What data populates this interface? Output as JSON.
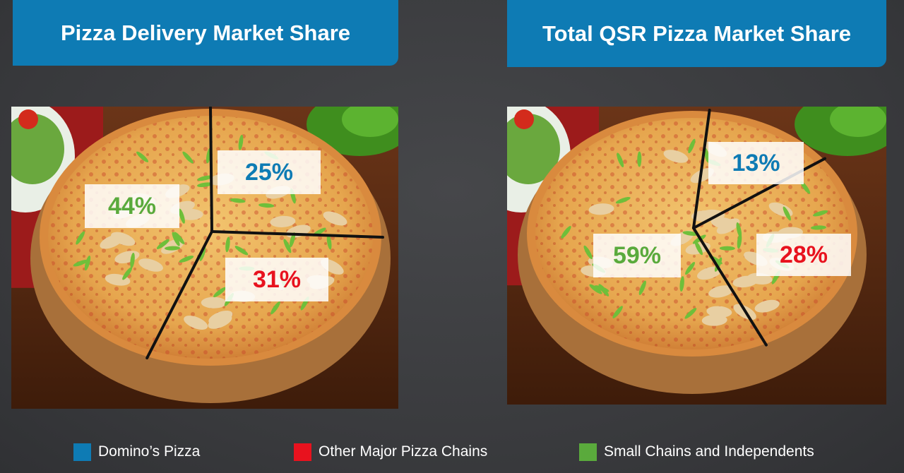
{
  "colors": {
    "dominos": "#0e7bb4",
    "other_chains": "#e8121e",
    "small_chains": "#5aaa3c",
    "title_bar": "#0e7bb4",
    "background": "#3e3f42"
  },
  "chart_data": [
    {
      "type": "pie",
      "title": "Pizza Delivery Market Share",
      "categories": [
        "Domino's Pizza",
        "Other Major Pizza Chains",
        "Small Chains and Independents"
      ],
      "values": [
        25,
        31,
        44
      ],
      "labels": [
        "25%",
        "31%",
        "44%"
      ]
    },
    {
      "type": "pie",
      "title": "Total QSR Pizza Market Share",
      "categories": [
        "Domino's Pizza",
        "Other Major Pizza Chains",
        "Small Chains and Independents"
      ],
      "values": [
        13,
        28,
        59
      ],
      "labels": [
        "13%",
        "28%",
        "59%"
      ]
    }
  ],
  "legend": [
    {
      "label": "Domino’s Pizza",
      "color": "#0e7bb4"
    },
    {
      "label": "Other Major Pizza Chains",
      "color": "#e8121e"
    },
    {
      "label": "Small Chains and Independents",
      "color": "#5aaa3c"
    }
  ],
  "legend_placement": "bottom"
}
